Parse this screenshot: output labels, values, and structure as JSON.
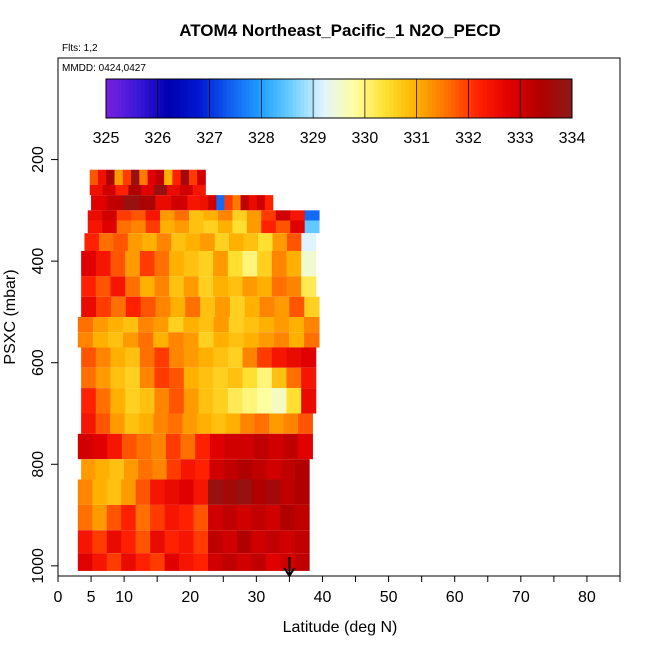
{
  "chart_data": {
    "type": "heatmap",
    "title": "ATOM4 Northeast_Pacific_1 N2O_PECD",
    "subtitle_flights": "Flts: 1,2",
    "subtitle_dates": "MMDD: 0424,0427",
    "xlabel": "Latitude (deg N)",
    "ylabel": "PSXC (mbar)",
    "xlim": [
      0,
      85
    ],
    "ylim": [
      1020,
      0
    ],
    "x_ticks": [
      0,
      5,
      10,
      20,
      30,
      40,
      50,
      60,
      70,
      80
    ],
    "y_ticks": [
      200,
      400,
      600,
      800,
      1000
    ],
    "colorbar": {
      "min": 325,
      "max": 334,
      "ticks": [
        325,
        326,
        327,
        328,
        329,
        330,
        331,
        332,
        333,
        334
      ],
      "colors": [
        "#7b20e0",
        "#3c18d8",
        "#0000b0",
        "#0018d0",
        "#1060f0",
        "#20a0ff",
        "#70d0ff",
        "#e0f4ff",
        "#ffffa0",
        "#ffe030",
        "#ffb000",
        "#ff7000",
        "#ff2000",
        "#e00000",
        "#b00000",
        "#8c1a1a"
      ]
    },
    "marker": {
      "lat": 35,
      "label": "arrow-down"
    },
    "rows": [
      {
        "p_top": 220,
        "p_bot": 250,
        "lat_min": 4.8,
        "lat_max": 22.3,
        "values": [
          331.8,
          332.5,
          333.5,
          331.2,
          332.0,
          333.8,
          331.5,
          332.8,
          333.2,
          331.0,
          332.2,
          333.6,
          332.0,
          333.0
        ]
      },
      {
        "p_top": 250,
        "p_bot": 270,
        "lat_min": 4.8,
        "lat_max": 22.3,
        "values": [
          332.5,
          333.0,
          332.2,
          333.4,
          332.8,
          333.8,
          332.6,
          333.0,
          332.4
        ]
      },
      {
        "p_top": 270,
        "p_bot": 300,
        "lat_min": 5.0,
        "lat_max": 22.0,
        "values": [
          332.8,
          333.2,
          333.8,
          333.5,
          332.6,
          333.0,
          332.4
        ]
      },
      {
        "p_top": 270,
        "p_bot": 300,
        "lat_min": 21.5,
        "lat_max": 32.5,
        "values": [
          332.5,
          333.0,
          327.5,
          332.0,
          331.5,
          333.2,
          332.6,
          333.0,
          332.2
        ]
      },
      {
        "p_top": 300,
        "p_bot": 320,
        "lat_min": 4.5,
        "lat_max": 39.5,
        "values": [
          332.6,
          333.0,
          332.0,
          331.8,
          332.4,
          331.2,
          331.6,
          330.8,
          331.0,
          331.4,
          330.6,
          331.2,
          332.0,
          333.0,
          332.4,
          327.5
        ]
      },
      {
        "p_top": 320,
        "p_bot": 345,
        "lat_min": 4.5,
        "lat_max": 39.5,
        "values": [
          332.4,
          332.8,
          331.6,
          331.4,
          332.0,
          331.0,
          331.2,
          330.8,
          330.6,
          331.0,
          330.4,
          331.2,
          332.2,
          331.8,
          332.8,
          328.5
        ]
      },
      {
        "p_top": 345,
        "p_bot": 380,
        "lat_min": 4.0,
        "lat_max": 39.0,
        "values": [
          332.2,
          331.6,
          331.8,
          331.2,
          331.0,
          331.4,
          330.8,
          331.0,
          331.2,
          330.6,
          331.0,
          330.8,
          330.4,
          331.2,
          331.8,
          329.2
        ]
      },
      {
        "p_top": 380,
        "p_bot": 430,
        "lat_min": 3.5,
        "lat_max": 39.0,
        "values": [
          332.8,
          332.4,
          331.8,
          331.2,
          332.0,
          331.6,
          331.0,
          330.8,
          330.6,
          331.2,
          330.4,
          330.0,
          330.6,
          331.4,
          331.0,
          329.5
        ]
      },
      {
        "p_top": 430,
        "p_bot": 470,
        "lat_min": 3.5,
        "lat_max": 39.0,
        "values": [
          332.2,
          331.8,
          332.4,
          331.6,
          331.0,
          331.4,
          330.8,
          331.2,
          330.6,
          331.0,
          330.8,
          331.2,
          331.0,
          331.6,
          331.4,
          330.2
        ]
      },
      {
        "p_top": 470,
        "p_bot": 510,
        "lat_min": 3.5,
        "lat_max": 39.5,
        "values": [
          332.6,
          332.0,
          331.6,
          332.2,
          331.8,
          331.4,
          331.0,
          331.6,
          330.8,
          331.2,
          330.6,
          331.0,
          331.4,
          331.2,
          331.8,
          330.6
        ]
      },
      {
        "p_top": 510,
        "p_bot": 540,
        "lat_min": 3.0,
        "lat_max": 39.5,
        "values": [
          331.6,
          331.2,
          331.0,
          330.8,
          331.4,
          331.2,
          330.6,
          331.0,
          330.8,
          331.2,
          330.6,
          330.8,
          331.0,
          331.2,
          331.0,
          331.4
        ]
      },
      {
        "p_top": 540,
        "p_bot": 570,
        "lat_min": 3.0,
        "lat_max": 39.5,
        "values": [
          331.4,
          331.0,
          330.8,
          331.2,
          331.6,
          331.0,
          331.4,
          331.2,
          330.6,
          331.0,
          330.8,
          331.0,
          331.2,
          331.4,
          331.0,
          331.6
        ]
      },
      {
        "p_top": 570,
        "p_bot": 610,
        "lat_min": 3.5,
        "lat_max": 39.0,
        "values": [
          331.8,
          331.4,
          331.0,
          330.8,
          331.6,
          332.0,
          331.4,
          331.2,
          331.0,
          330.8,
          330.6,
          331.4,
          332.0,
          332.4,
          332.6,
          332.8
        ]
      },
      {
        "p_top": 610,
        "p_bot": 650,
        "lat_min": 3.5,
        "lat_max": 39.0,
        "values": [
          331.6,
          331.2,
          330.8,
          330.6,
          331.4,
          332.0,
          331.8,
          331.0,
          330.8,
          330.6,
          330.8,
          330.4,
          330.0,
          330.8,
          331.6,
          332.4
        ]
      },
      {
        "p_top": 650,
        "p_bot": 700,
        "lat_min": 3.5,
        "lat_max": 39.0,
        "values": [
          332.2,
          331.6,
          331.0,
          330.6,
          330.8,
          331.4,
          331.8,
          331.2,
          330.8,
          330.6,
          330.2,
          330.0,
          329.8,
          329.6,
          330.4,
          332.6
        ]
      },
      {
        "p_top": 700,
        "p_bot": 740,
        "lat_min": 3.5,
        "lat_max": 38.5,
        "values": [
          332.4,
          331.8,
          331.2,
          330.8,
          331.0,
          331.4,
          331.6,
          331.2,
          331.0,
          330.8,
          331.0,
          331.4,
          331.6,
          331.2,
          331.4,
          331.8
        ]
      },
      {
        "p_top": 740,
        "p_bot": 790,
        "lat_min": 3.0,
        "lat_max": 38.5,
        "values": [
          333.0,
          332.8,
          332.4,
          331.8,
          331.6,
          331.4,
          332.0,
          331.6,
          332.2,
          332.8,
          333.0,
          333.0,
          333.2,
          333.0,
          333.2,
          332.8
        ]
      },
      {
        "p_top": 790,
        "p_bot": 830,
        "lat_min": 3.5,
        "lat_max": 38.0,
        "values": [
          331.2,
          331.0,
          330.8,
          331.2,
          331.6,
          331.4,
          332.0,
          332.4,
          332.2,
          333.0,
          333.2,
          333.4,
          333.2,
          333.0,
          333.2,
          333.4
        ]
      },
      {
        "p_top": 830,
        "p_bot": 880,
        "lat_min": 3.0,
        "lat_max": 38.0,
        "values": [
          331.4,
          331.0,
          330.8,
          331.2,
          331.8,
          332.4,
          332.6,
          332.8,
          332.4,
          333.8,
          333.6,
          333.8,
          333.4,
          333.6,
          333.2,
          333.4
        ]
      },
      {
        "p_top": 880,
        "p_bot": 930,
        "lat_min": 3.0,
        "lat_max": 38.0,
        "values": [
          331.6,
          331.2,
          331.8,
          332.2,
          331.6,
          332.0,
          332.4,
          332.2,
          331.8,
          333.0,
          333.2,
          333.0,
          333.2,
          333.0,
          333.4,
          333.2
        ]
      },
      {
        "p_top": 930,
        "p_bot": 975,
        "lat_min": 3.0,
        "lat_max": 38.0,
        "values": [
          332.4,
          332.0,
          332.6,
          332.2,
          331.8,
          332.6,
          332.2,
          332.4,
          332.0,
          333.2,
          333.0,
          333.4,
          333.0,
          333.2,
          333.0,
          333.2
        ]
      },
      {
        "p_top": 975,
        "p_bot": 1010,
        "lat_min": 3.0,
        "lat_max": 38.0,
        "values": [
          332.8,
          332.4,
          332.0,
          332.6,
          332.2,
          332.0,
          332.8,
          332.4,
          332.2,
          333.0,
          333.2,
          333.0,
          333.2,
          332.8,
          333.0,
          333.2
        ]
      }
    ]
  }
}
